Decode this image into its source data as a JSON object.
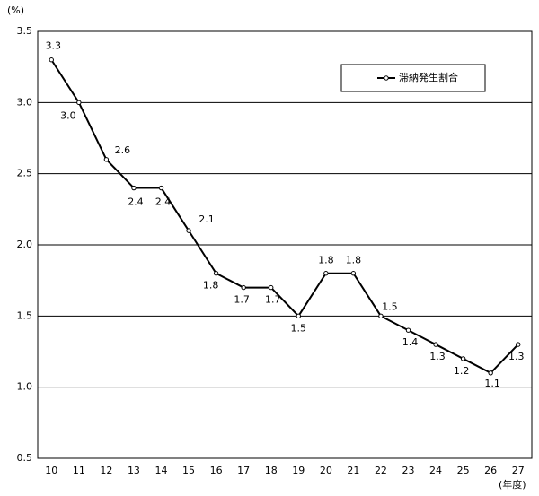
{
  "chart_data": {
    "type": "line",
    "y_unit_label": "(%)",
    "x_unit_label": "(年度)",
    "categories": [
      "10",
      "11",
      "12",
      "13",
      "14",
      "15",
      "16",
      "17",
      "18",
      "19",
      "20",
      "21",
      "22",
      "23",
      "24",
      "25",
      "26",
      "27"
    ],
    "series": [
      {
        "name": "滞納発生割合",
        "color": "#000000",
        "values": [
          3.3,
          3.0,
          2.6,
          2.4,
          2.4,
          2.1,
          1.8,
          1.7,
          1.7,
          1.5,
          1.8,
          1.8,
          1.5,
          1.4,
          1.3,
          1.2,
          1.1,
          1.3
        ],
        "value_labels": [
          "3.3",
          "3.0",
          "2.6",
          "2.4",
          "2.4",
          "2.1",
          "1.8",
          "1.7",
          "1.7",
          "1.5",
          "1.8",
          "1.8",
          "1.5",
          "1.4",
          "1.3",
          "1.2",
          "1.1",
          "1.3"
        ]
      }
    ],
    "ylim": [
      0.5,
      3.5
    ],
    "yticks": [
      0.5,
      {
        "value": 1.0,
        "label": "1.0"
      },
      1.5,
      {
        "value": 2.0,
        "label": "2.0"
      },
      2.5,
      {
        "value": 3.0,
        "label": "3.0"
      },
      3.5
    ],
    "grid": true,
    "legend": "top-right"
  }
}
